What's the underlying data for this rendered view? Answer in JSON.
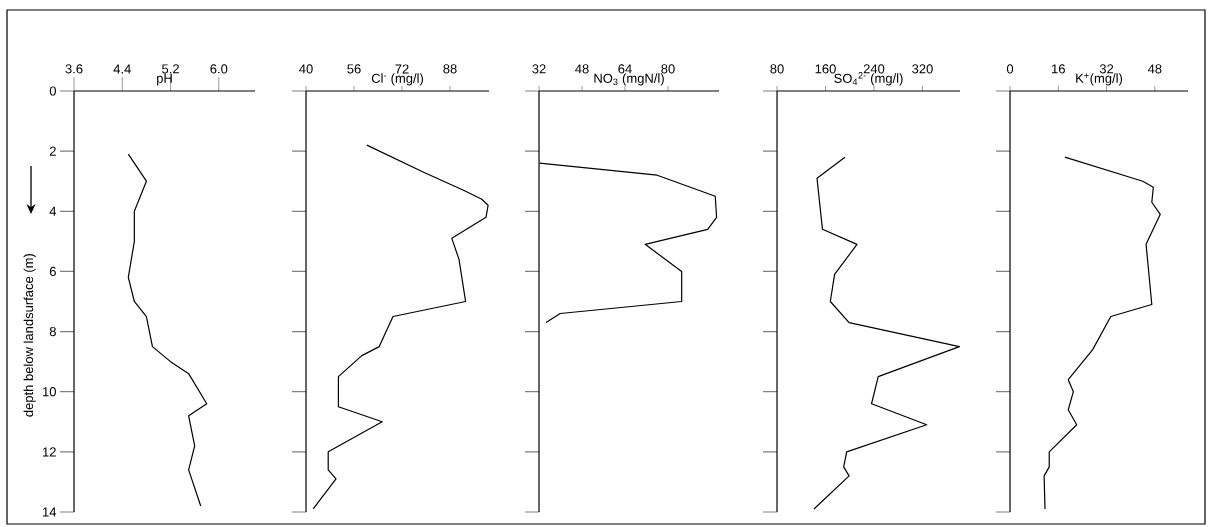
{
  "chart_data": [
    {
      "type": "line",
      "title": "pH",
      "ylabel": "depth below landsurface (m)",
      "xlim": [
        3.6,
        6.6
      ],
      "ylim": [
        14,
        0
      ],
      "xticks": [
        3.6,
        4.4,
        5.2,
        {
          "value": 6.0,
          "label": "6.0"
        }
      ],
      "yticks": [
        0,
        2,
        4,
        6,
        8,
        10,
        12,
        14
      ],
      "series": [
        {
          "color": "#000000",
          "x": [
            4.5,
            4.8,
            4.6,
            4.6,
            4.5,
            4.6,
            4.8,
            4.9,
            5.2,
            5.5,
            5.8,
            5.5,
            5.6,
            5.5,
            5.7
          ],
          "values": [
            2.1,
            3.0,
            4.0,
            5.0,
            6.2,
            7.0,
            7.5,
            8.5,
            9.0,
            9.4,
            10.4,
            10.8,
            11.8,
            12.6,
            13.8
          ]
        }
      ]
    },
    {
      "type": "line",
      "title": "Cl$^{-}$ (mg/l)",
      "xlim": [
        40,
        101
      ],
      "ylim": [
        14,
        0
      ],
      "xticks": [
        40,
        56,
        72,
        88
      ],
      "tick_labels": "x",
      "yticks": [
        {
          "value": 0,
          "label": null
        },
        {
          "value": 2,
          "label": null
        },
        {
          "value": 4,
          "label": null
        },
        {
          "value": 6,
          "label": null
        },
        {
          "value": 8,
          "label": null
        },
        {
          "value": 10,
          "label": null
        },
        {
          "value": 12,
          "label": null
        },
        {
          "value": 14,
          "label": null
        }
      ],
      "series": [
        {
          "color": "#000000",
          "x": [
            60.3,
            79.2,
            92.5,
            98.6,
            100.7,
            100.0,
            88.6,
            91.0,
            93.2,
            69.0,
            64.4,
            58.6,
            50.8,
            50.8,
            65.4,
            47.4,
            47.4,
            50.0,
            42.4
          ],
          "values": [
            1.8,
            2.7,
            3.3,
            3.6,
            3.8,
            4.2,
            4.9,
            5.6,
            7.0,
            7.5,
            8.5,
            8.8,
            9.5,
            10.5,
            11.0,
            12.0,
            12.6,
            12.9,
            13.9
          ]
        }
      ]
    },
    {
      "type": "line",
      "title": "NO$_{3}$ (mgN/l)",
      "xlim": [
        32,
        99
      ],
      "ylim": [
        14,
        0
      ],
      "xticks": [
        32,
        48,
        64,
        80
      ],
      "tick_labels": "x",
      "yticks": [
        {
          "value": 0,
          "label": null
        },
        {
          "value": 2,
          "label": null
        },
        {
          "value": 4,
          "label": null
        },
        {
          "value": 6,
          "label": null
        },
        {
          "value": 8,
          "label": null
        },
        {
          "value": 10,
          "label": null
        },
        {
          "value": 12,
          "label": null
        },
        {
          "value": 14,
          "label": null
        }
      ],
      "series": [
        {
          "color": "#000000",
          "x": [
            32.2,
            76.0,
            97.6,
            98.1,
            94.8,
            71.5,
            85.1,
            85.1,
            39.9,
            34.6
          ],
          "values": [
            2.4,
            2.8,
            3.5,
            4.2,
            4.6,
            5.1,
            6.0,
            7.0,
            7.4,
            7.7
          ]
        }
      ]
    },
    {
      "type": "line",
      "title": "SO$_{4}$$^{2-}$ (mg/l)",
      "xlim": [
        80,
        382
      ],
      "ylim": [
        14,
        0
      ],
      "xticks": [
        80,
        160,
        240,
        320
      ],
      "tick_labels": "x",
      "yticks": [
        {
          "value": 0,
          "label": null
        },
        {
          "value": 2,
          "label": null
        },
        {
          "value": 4,
          "label": null
        },
        {
          "value": 6,
          "label": null
        },
        {
          "value": 8,
          "label": null
        },
        {
          "value": 10,
          "label": null
        },
        {
          "value": 12,
          "label": null
        },
        {
          "value": 14,
          "label": null
        }
      ],
      "series": [
        {
          "color": "#000000",
          "x": [
            192,
            146,
            155,
            212,
            175,
            168,
            199,
            381,
            247,
            236,
            327,
            195,
            190,
            199,
            141
          ],
          "values": [
            2.2,
            2.9,
            4.6,
            5.1,
            6.1,
            7.0,
            7.7,
            8.5,
            9.5,
            10.4,
            11.1,
            12.0,
            12.5,
            12.8,
            13.9
          ]
        }
      ]
    },
    {
      "type": "line",
      "title": "K$^{+}$(mg/l)",
      "xlim": [
        0,
        59
      ],
      "ylim": [
        14,
        0
      ],
      "xticks": [
        0,
        16,
        32,
        48
      ],
      "tick_labels": "x",
      "yticks": [
        {
          "value": 0,
          "label": null
        },
        {
          "value": 2,
          "label": null
        },
        {
          "value": 4,
          "label": null
        },
        {
          "value": 6,
          "label": null
        },
        {
          "value": 8,
          "label": null
        },
        {
          "value": 10,
          "label": null
        },
        {
          "value": 12,
          "label": null
        },
        {
          "value": 14,
          "label": null
        }
      ],
      "series": [
        {
          "color": "#000000",
          "x": [
            18.2,
            44.0,
            47.5,
            47.0,
            49.8,
            45.1,
            47.0,
            33.4,
            27.4,
            19.3,
            21.0,
            19.3,
            22.1,
            13.0,
            13.0,
            11.3,
            11.6
          ],
          "values": [
            2.2,
            3.0,
            3.2,
            3.7,
            4.1,
            5.1,
            7.1,
            7.5,
            8.6,
            9.6,
            10.0,
            10.6,
            11.1,
            12.0,
            12.5,
            12.8,
            13.9
          ]
        }
      ]
    }
  ]
}
